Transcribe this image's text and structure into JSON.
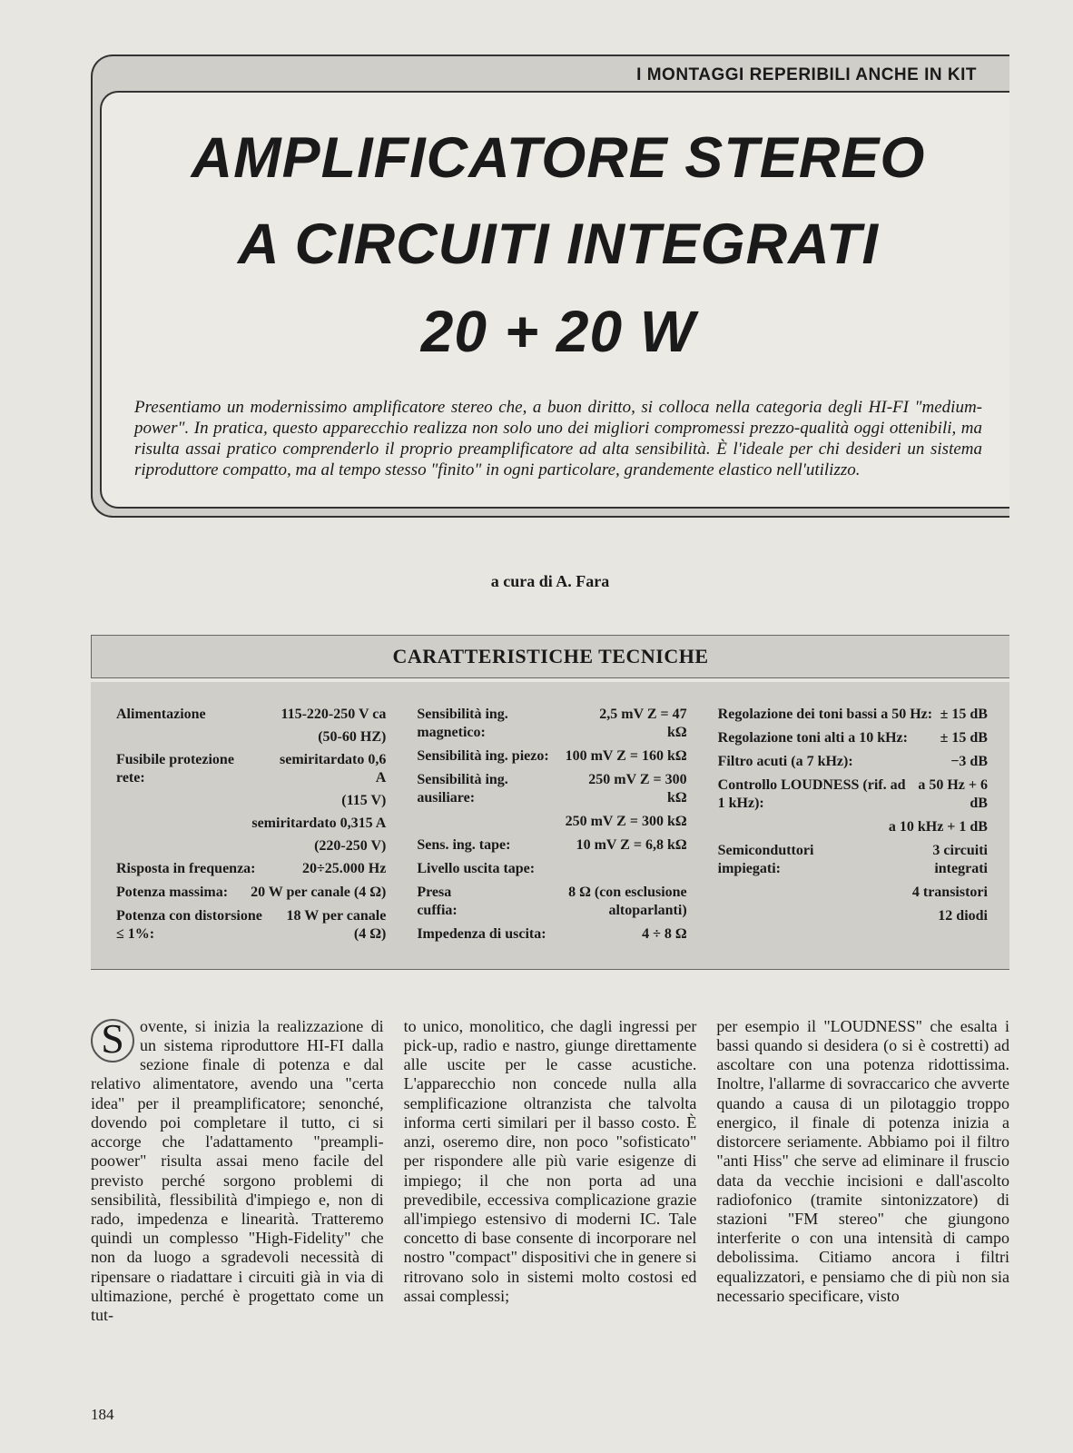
{
  "kit_label": "I MONTAGGI REPERIBILI ANCHE IN KIT",
  "title": {
    "line1": "AMPLIFICATORE STEREO",
    "line2": "A CIRCUITI INTEGRATI",
    "line3": "20 + 20 W"
  },
  "intro": "Presentiamo un modernissimo amplificatore stereo che, a buon diritto, si colloca nella categoria degli HI-FI \"medium-power\". In pratica, questo apparecchio realizza non solo uno dei migliori compromessi prezzo-qualità oggi ottenibili, ma risulta assai pratico comprenderlo il proprio preamplificatore ad alta sensibilità. È l'ideale per chi desideri un sistema riproduttore compatto, ma al tempo stesso \"finito\" in ogni particolare, grandemente elastico nell'utilizzo.",
  "byline": "a cura di A. Fara",
  "section_header": "CARATTERISTICHE TECNICHE",
  "specs": {
    "col1": [
      {
        "label": "Alimentazione",
        "value": "115-220-250 V ca",
        "sub": "(50-60 HZ)"
      },
      {
        "label": "Fusibile protezione rete:",
        "value": "semiritardato 0,6 A",
        "sub": "(115 V)"
      },
      {
        "label": "",
        "value": "semiritardato 0,315 A",
        "sub": "(220-250 V)"
      },
      {
        "label": "Risposta in frequenza:",
        "value": "20÷25.000 Hz"
      },
      {
        "label": "Potenza massima:",
        "value": "20 W per canale (4 Ω)"
      },
      {
        "label": "Potenza con distorsione ≤ 1%:",
        "value": "18 W per canale (4 Ω)"
      }
    ],
    "col2": [
      {
        "label": "Sensibilità ing. magnetico:",
        "value": "2,5 mV Z = 47 kΩ"
      },
      {
        "label": "Sensibilità ing. piezo:",
        "value": "100 mV Z = 160 kΩ"
      },
      {
        "label": "Sensibilità ing. ausiliare:",
        "value": "250 mV Z = 300 kΩ"
      },
      {
        "label": "",
        "value": "250 mV Z = 300 kΩ"
      },
      {
        "label": "Sens. ing. tape:",
        "value": "10 mV Z = 6,8 kΩ"
      },
      {
        "label": "Livello uscita tape:",
        "value": ""
      },
      {
        "label": "Presa cuffia:",
        "value": "8 Ω (con esclusione altoparlanti)"
      },
      {
        "label": "Impedenza di uscita:",
        "value": "4 ÷ 8 Ω"
      }
    ],
    "col3": [
      {
        "label": "Regolazione dei toni bassi a 50 Hz:",
        "value": "± 15 dB"
      },
      {
        "label": "Regolazione toni alti a 10 kHz:",
        "value": "± 15 dB"
      },
      {
        "label": "Filtro acuti (a 7 kHz):",
        "value": "−3 dB"
      },
      {
        "label": "Controllo LOUDNESS (rif. ad 1 kHz):",
        "value": "a 50 Hz + 6 dB"
      },
      {
        "label": "",
        "value": "a 10 kHz + 1 dB"
      },
      {
        "label": "Semiconduttori impiegati:",
        "value": "3 circuiti integrati"
      },
      {
        "label": "",
        "value": "4 transistori"
      },
      {
        "label": "",
        "value": "12 diodi"
      }
    ]
  },
  "body": {
    "dropcap": "S",
    "col1": "ovente, si inizia la realizzazione di un sistema riproduttore HI-FI dalla sezione finale di potenza e dal relativo alimentatore, avendo una \"certa idea\" per il preamplificatore; senonché, dovendo poi completare il tutto, ci si accorge che l'adattamento \"preampli-poower\" risulta assai meno facile del previsto perché sorgono problemi di sensibilità, flessibilità d'impiego e, non di rado, impedenza e linearità. Tratteremo quindi un complesso \"High-Fidelity\" che non da luogo a sgradevoli necessità di ripensare o riadattare i circuiti già in via di ultimazione, perché è progettato come un tut-",
    "col2": "to unico, monolitico, che dagli ingressi per pick-up, radio e nastro, giunge direttamente alle uscite per le casse acustiche. L'apparecchio non concede nulla alla semplificazione oltranzista che talvolta informa certi similari per il basso costo. È anzi, oseremo dire, non poco \"sofisticato\" per rispondere alle più varie esigenze di impiego; il che non porta ad una prevedibile, eccessiva complicazione grazie all'impiego estensivo di moderni IC. Tale concetto di base consente di incorporare nel nostro \"compact\" dispositivi che in genere si ritrovano solo in sistemi molto costosi ed assai complessi;",
    "col3": "per esempio il \"LOUDNESS\" che esalta i bassi quando si desidera (o si è costretti) ad ascoltare con una potenza ridottissima. Inoltre, l'allarme di sovraccarico che avverte quando a causa di un pilotaggio troppo energico, il finale di potenza inizia a distorcere seriamente. Abbiamo poi il filtro \"anti Hiss\" che serve ad eliminare il fruscio data da vecchie incisioni e dall'ascolto radiofonico (tramite sintonizzatore) di stazioni \"FM stereo\" che giungono interferite o con una intensità di campo debolissima. Citiamo ancora i filtri equalizzatori, e pensiamo che di più non sia necessario specificare, visto"
  },
  "page_number": "184",
  "colors": {
    "page_bg": "#e8e6e0",
    "box_bg": "#d0cec8",
    "inner_bg": "#eceae4",
    "text": "#1a1a1a",
    "border": "#333333"
  }
}
